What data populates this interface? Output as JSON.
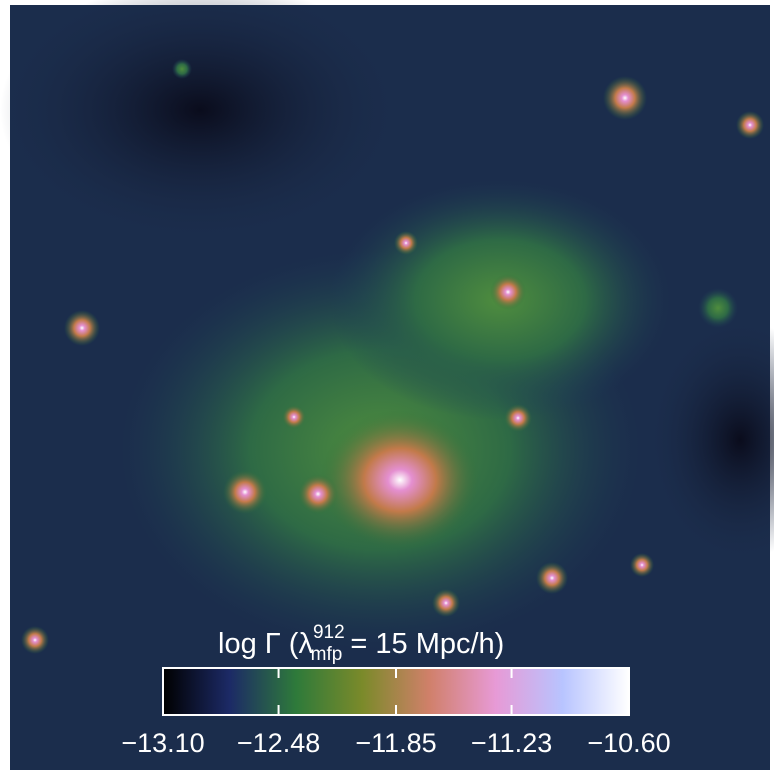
{
  "chart_data": {
    "type": "colormap-image",
    "title": {
      "main": "log Γ (λ",
      "sup": "912",
      "sub": "mfp",
      "rest": " = 15 Mpc/h)"
    },
    "colorbar": {
      "lim": [
        -13.1,
        -10.6
      ],
      "ticks": [
        {
          "value": -13.1,
          "label": "−13.10"
        },
        {
          "value": -12.48,
          "label": "−12.48"
        },
        {
          "value": -11.85,
          "label": "−11.85"
        },
        {
          "value": -11.23,
          "label": "−11.23"
        },
        {
          "value": -10.6,
          "label": "−10.60"
        }
      ],
      "colors": [
        "#000000",
        "#1c2a66",
        "#2e7a3a",
        "#7b8a2a",
        "#d0806a",
        "#e79ad6",
        "#b8c4ff",
        "#ffffff"
      ]
    }
  }
}
